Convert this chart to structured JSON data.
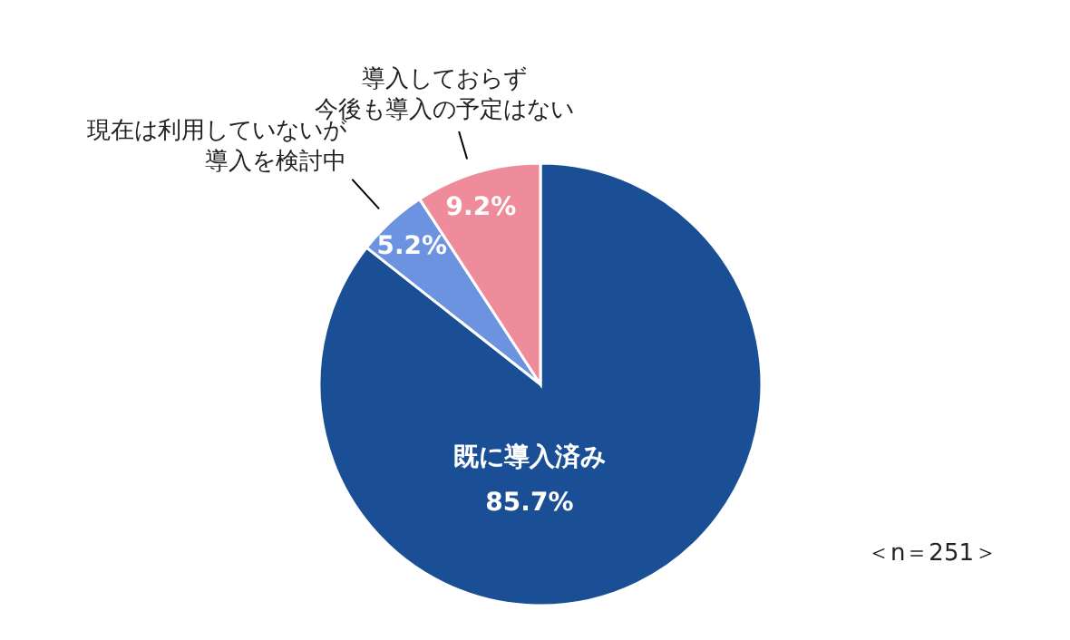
{
  "chart_data": {
    "type": "pie",
    "categories": [
      "既に導入済み",
      "現在は利用していないが導入を検討中",
      "導入しておらず今後も導入の予定はない"
    ],
    "values": [
      85.7,
      5.2,
      9.2
    ],
    "colors": [
      "#1b4f95",
      "#6b93e0",
      "#ef8c9c"
    ],
    "value_labels": [
      "85.7%",
      "5.2%",
      "9.2%"
    ],
    "annotations": [
      "＜n＝251＞"
    ],
    "legend": false
  }
}
